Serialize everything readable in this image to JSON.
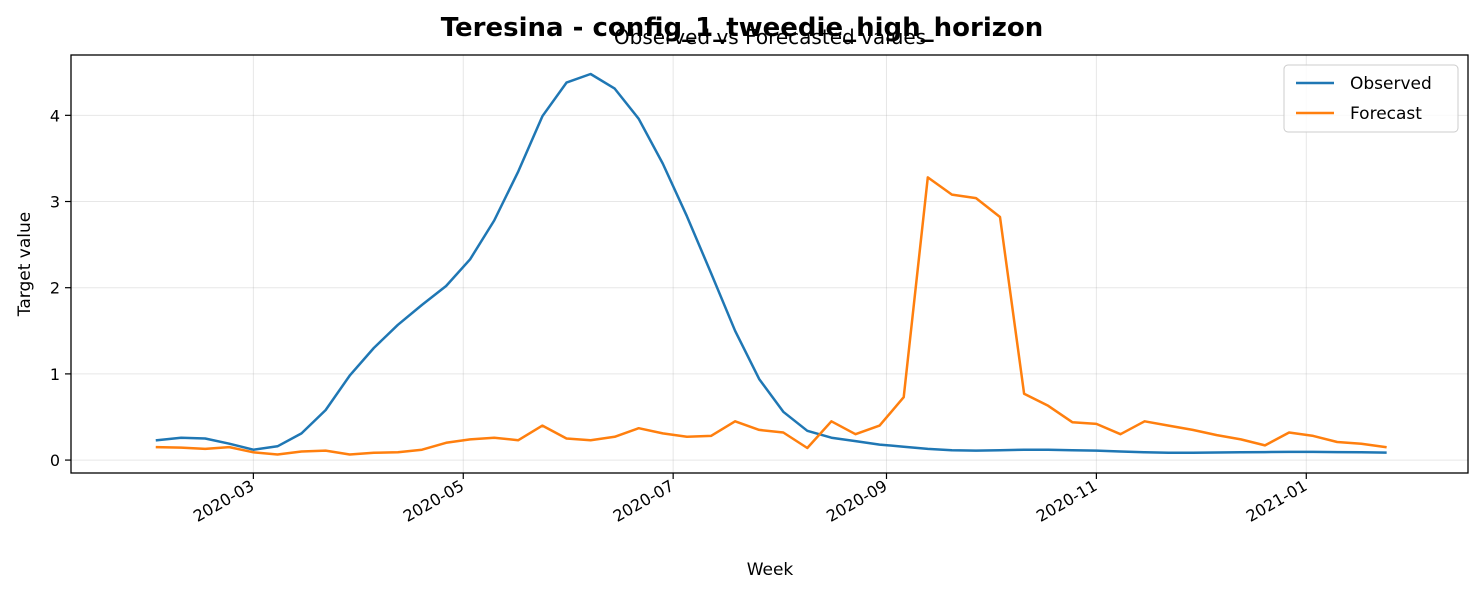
{
  "chart_data": {
    "type": "line",
    "title": "Teresina - config_1_tweedie_high_horizon",
    "subtitle": "Observed vs Forecasted values",
    "xlabel": "Week",
    "ylabel": "Target value",
    "xlim": [
      "2020-01-08",
      "2021-02-17"
    ],
    "ylim": [
      -0.15,
      4.7
    ],
    "yticks": [
      0,
      1,
      2,
      3,
      4
    ],
    "xticks": [
      "2020-03-01",
      "2020-05-01",
      "2020-07-01",
      "2020-09-01",
      "2020-11-01",
      "2021-01-01"
    ],
    "xtick_labels": [
      "2020-03",
      "2020-05",
      "2020-07",
      "2020-09",
      "2020-11",
      "2021-01"
    ],
    "grid": true,
    "legend_position": "top-right",
    "x": [
      "2020-02-02",
      "2020-02-09",
      "2020-02-16",
      "2020-02-23",
      "2020-03-01",
      "2020-03-08",
      "2020-03-15",
      "2020-03-22",
      "2020-03-29",
      "2020-04-05",
      "2020-04-12",
      "2020-04-19",
      "2020-04-26",
      "2020-05-03",
      "2020-05-10",
      "2020-05-17",
      "2020-05-24",
      "2020-05-31",
      "2020-06-07",
      "2020-06-14",
      "2020-06-21",
      "2020-06-28",
      "2020-07-05",
      "2020-07-12",
      "2020-07-19",
      "2020-07-26",
      "2020-08-02",
      "2020-08-09",
      "2020-08-16",
      "2020-08-23",
      "2020-08-30",
      "2020-09-06",
      "2020-09-13",
      "2020-09-20",
      "2020-09-27",
      "2020-10-04",
      "2020-10-11",
      "2020-10-18",
      "2020-10-25",
      "2020-11-01",
      "2020-11-08",
      "2020-11-15",
      "2020-11-22",
      "2020-11-29",
      "2020-12-06",
      "2020-12-13",
      "2020-12-20",
      "2020-12-27",
      "2021-01-03",
      "2021-01-10",
      "2021-01-17",
      "2021-01-24"
    ],
    "series": [
      {
        "name": "Observed",
        "color": "#1f77b4",
        "values": [
          0.23,
          0.26,
          0.25,
          0.19,
          0.12,
          0.16,
          0.31,
          0.58,
          0.98,
          1.3,
          1.57,
          1.8,
          2.02,
          2.33,
          2.78,
          3.35,
          3.99,
          4.38,
          4.48,
          4.31,
          3.96,
          3.44,
          2.83,
          2.17,
          1.5,
          0.94,
          0.56,
          0.34,
          0.26,
          0.22,
          0.18,
          0.155,
          0.13,
          0.115,
          0.11,
          0.115,
          0.12,
          0.12,
          0.115,
          0.11,
          0.1,
          0.09,
          0.085,
          0.085,
          0.088,
          0.09,
          0.092,
          0.095,
          0.095,
          0.093,
          0.09,
          0.087
        ]
      },
      {
        "name": "Forecast",
        "color": "#ff7f0e",
        "values": [
          0.15,
          0.145,
          0.13,
          0.15,
          0.09,
          0.065,
          0.1,
          0.11,
          0.065,
          0.085,
          0.09,
          0.12,
          0.2,
          0.24,
          0.26,
          0.23,
          0.4,
          0.25,
          0.23,
          0.27,
          0.37,
          0.31,
          0.27,
          0.28,
          0.45,
          0.35,
          0.32,
          0.14,
          0.45,
          0.3,
          0.4,
          0.73,
          3.28,
          3.08,
          3.04,
          2.82,
          0.77,
          0.63,
          0.44,
          0.42,
          0.3,
          0.45,
          0.4,
          0.35,
          0.29,
          0.24,
          0.17,
          0.32,
          0.28,
          0.21,
          0.19,
          0.15
        ]
      }
    ]
  }
}
